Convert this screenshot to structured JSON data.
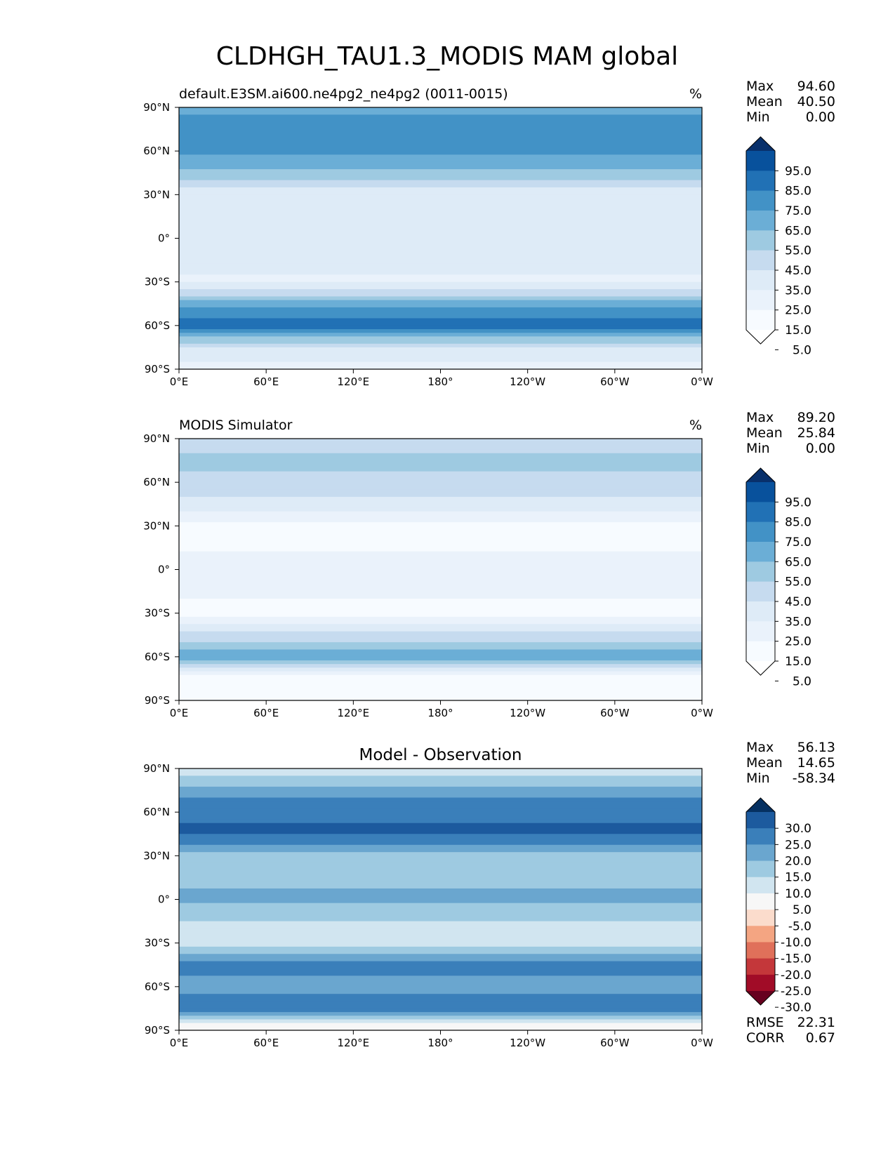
{
  "figure": {
    "title": "CLDHGH_TAU1.3_MODIS MAM global"
  },
  "chart_data": [
    {
      "type": "heatmap",
      "name": "test",
      "title_left": "default.E3SM.ai600.ne4pg2_ne4pg2 (0011-0015)",
      "title_right": "%",
      "x_ticks": [
        "0°E",
        "60°E",
        "120°E",
        "180°",
        "120°W",
        "60°W",
        "0°W"
      ],
      "y_ticks": [
        "90°N",
        "60°N",
        "30°N",
        "0°",
        "30°S",
        "60°S",
        "90°S"
      ],
      "x_range": [
        0,
        360
      ],
      "y_range": [
        -90,
        90
      ],
      "stats": [
        {
          "label": "Max",
          "value": "94.60"
        },
        {
          "label": "Mean",
          "value": "40.50"
        },
        {
          "label": "Min",
          "value": "0.00"
        }
      ],
      "colorbar": {
        "labels": [
          "95.0",
          "85.0",
          "75.0",
          "65.0",
          "55.0",
          "45.0",
          "35.0",
          "25.0",
          "15.0",
          "5.0"
        ],
        "colors": [
          "#08306b",
          "#08519c",
          "#2171b5",
          "#4292c6",
          "#6baed6",
          "#9ecae1",
          "#c6dbef",
          "#deebf7",
          "#eaf2fb",
          "#f7fbff",
          "#ffffff"
        ]
      },
      "zonal_profile": [
        {
          "lat": 90,
          "value": 60
        },
        {
          "lat": 75,
          "value": 72
        },
        {
          "lat": 60,
          "value": 68
        },
        {
          "lat": 45,
          "value": 52
        },
        {
          "lat": 30,
          "value": 25
        },
        {
          "lat": 15,
          "value": 28
        },
        {
          "lat": 0,
          "value": 32
        },
        {
          "lat": -15,
          "value": 30
        },
        {
          "lat": -30,
          "value": 22
        },
        {
          "lat": -45,
          "value": 60
        },
        {
          "lat": -60,
          "value": 82
        },
        {
          "lat": -75,
          "value": 35
        },
        {
          "lat": -90,
          "value": 20
        }
      ]
    },
    {
      "type": "heatmap",
      "name": "reference",
      "title_left": "MODIS Simulator",
      "title_right": "%",
      "x_ticks": [
        "0°E",
        "60°E",
        "120°E",
        "180°",
        "120°W",
        "60°W",
        "0°W"
      ],
      "y_ticks": [
        "90°N",
        "60°N",
        "30°N",
        "0°",
        "30°S",
        "60°S",
        "90°S"
      ],
      "x_range": [
        0,
        360
      ],
      "y_range": [
        -90,
        90
      ],
      "stats": [
        {
          "label": "Max",
          "value": "89.20"
        },
        {
          "label": "Mean",
          "value": "25.84"
        },
        {
          "label": "Min",
          "value": "0.00"
        }
      ],
      "colorbar": {
        "labels": [
          "95.0",
          "85.0",
          "75.0",
          "65.0",
          "55.0",
          "45.0",
          "35.0",
          "25.0",
          "15.0",
          "5.0"
        ],
        "colors": [
          "#08306b",
          "#08519c",
          "#2171b5",
          "#4292c6",
          "#6baed6",
          "#9ecae1",
          "#c6dbef",
          "#deebf7",
          "#eaf2fb",
          "#f7fbff",
          "#ffffff"
        ]
      },
      "zonal_profile": [
        {
          "lat": 90,
          "value": 40
        },
        {
          "lat": 75,
          "value": 48
        },
        {
          "lat": 60,
          "value": 42
        },
        {
          "lat": 45,
          "value": 30
        },
        {
          "lat": 30,
          "value": 12
        },
        {
          "lat": 15,
          "value": 14
        },
        {
          "lat": 0,
          "value": 18
        },
        {
          "lat": -15,
          "value": 16
        },
        {
          "lat": -30,
          "value": 12
        },
        {
          "lat": -45,
          "value": 38
        },
        {
          "lat": -60,
          "value": 62
        },
        {
          "lat": -75,
          "value": 10
        },
        {
          "lat": -90,
          "value": 5
        }
      ]
    },
    {
      "type": "heatmap",
      "name": "diff",
      "title_center": "Model - Observation",
      "x_ticks": [
        "0°E",
        "60°E",
        "120°E",
        "180°",
        "120°W",
        "60°W",
        "0°W"
      ],
      "y_ticks": [
        "90°N",
        "60°N",
        "30°N",
        "0°",
        "30°S",
        "60°S",
        "90°S"
      ],
      "x_range": [
        0,
        360
      ],
      "y_range": [
        -90,
        90
      ],
      "stats": [
        {
          "label": "Max",
          "value": "56.13"
        },
        {
          "label": "Mean",
          "value": "14.65"
        },
        {
          "label": "Min",
          "value": "-58.34"
        }
      ],
      "bottom_stats": [
        {
          "label": "RMSE",
          "value": "22.31"
        },
        {
          "label": "CORR",
          "value": "0.67"
        }
      ],
      "colorbar": {
        "labels": [
          "30.0",
          "25.0",
          "20.0",
          "15.0",
          "10.0",
          "5.0",
          "-5.0",
          "-10.0",
          "-15.0",
          "-20.0",
          "-25.0",
          "-30.0"
        ],
        "colors": [
          "#053061",
          "#1c5a9e",
          "#3a7fba",
          "#6aa6cf",
          "#9ecae1",
          "#d1e5f0",
          "#f7f7f7",
          "#fbdccc",
          "#f4a582",
          "#e0705a",
          "#c4373a",
          "#a10c27",
          "#67001f"
        ]
      },
      "zonal_profile": [
        {
          "lat": 90,
          "value": 5
        },
        {
          "lat": 75,
          "value": 18
        },
        {
          "lat": 60,
          "value": 24
        },
        {
          "lat": 45,
          "value": 26
        },
        {
          "lat": 30,
          "value": 12
        },
        {
          "lat": 15,
          "value": 14
        },
        {
          "lat": 0,
          "value": 16
        },
        {
          "lat": -15,
          "value": 10
        },
        {
          "lat": -30,
          "value": 8
        },
        {
          "lat": -45,
          "value": 22
        },
        {
          "lat": -60,
          "value": 18
        },
        {
          "lat": -75,
          "value": 24
        },
        {
          "lat": -90,
          "value": -6
        }
      ]
    }
  ]
}
